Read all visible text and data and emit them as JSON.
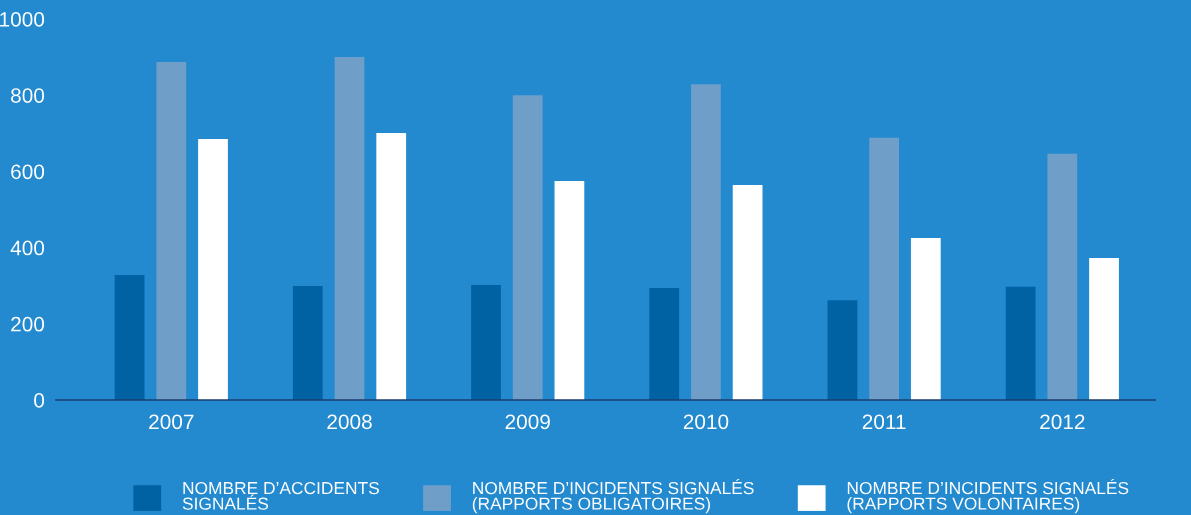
{
  "chart_data": {
    "type": "bar",
    "categories": [
      "2007",
      "2008",
      "2009",
      "2010",
      "2011",
      "2012"
    ],
    "series": [
      {
        "name": "NOMBRE D’ACCIDENTS\nSIGNALÉS",
        "color": "#0061a3",
        "values": [
          328,
          299,
          302,
          294,
          262,
          297
        ]
      },
      {
        "name": "NOMBRE D’INCIDENTS SIGNALÉS\n(RAPPORTS OBLIGATOIRES)",
        "color": "#6f9ec9",
        "values": [
          887,
          900,
          800,
          829,
          688,
          646
        ]
      },
      {
        "name": "NOMBRE D’INCIDENTS SIGNALÉS\n(RAPPORTS VOLONTAIRES)",
        "color": "#ffffff",
        "values": [
          685,
          701,
          575,
          564,
          425,
          373
        ]
      }
    ],
    "ylim": [
      0,
      1000
    ],
    "yticks": [
      0,
      200,
      400,
      600,
      800,
      1000
    ],
    "grid": false,
    "legend": "bottom"
  }
}
